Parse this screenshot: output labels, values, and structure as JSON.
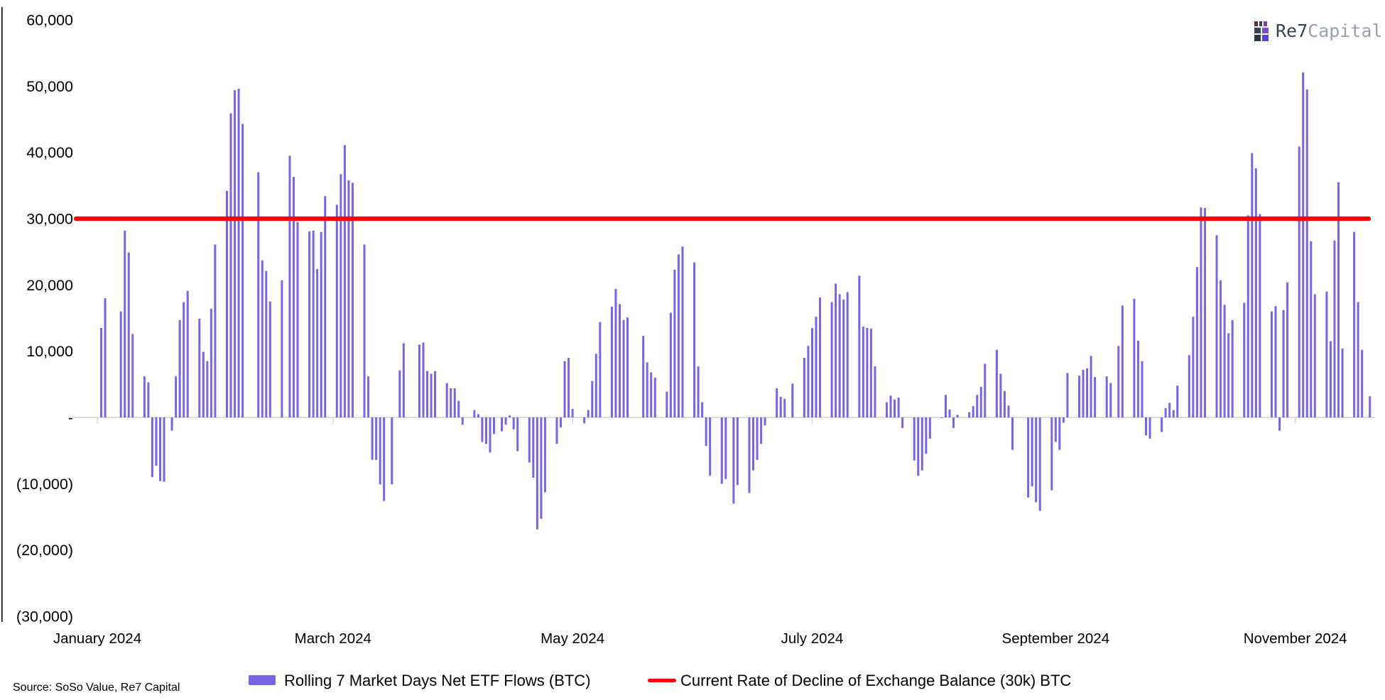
{
  "header": {
    "logo": {
      "icon": "rook-castle-icon",
      "text_primary": "Re7",
      "text_secondary": "Capital"
    }
  },
  "footer": {
    "source": "Source: SoSo Value, Re7 Capital"
  },
  "legend": {
    "series_label": "Rolling 7 Market Days Net ETF Flows (BTC)",
    "refline_label": "Current Rate of Decline of Exchange Balance (30k) BTC"
  },
  "chart_data": {
    "type": "bar",
    "title": "",
    "units": "BTC",
    "bar_color": "#7765e3",
    "grid": false,
    "legend_position": "bottom",
    "y_axis": {
      "min": -30000,
      "max": 60000,
      "tick_step": 10000,
      "ticks": [
        {
          "value": 60000,
          "label": "60,000"
        },
        {
          "value": 50000,
          "label": "50,000"
        },
        {
          "value": 40000,
          "label": "40,000"
        },
        {
          "value": 30000,
          "label": "30,000"
        },
        {
          "value": 20000,
          "label": "20,000"
        },
        {
          "value": 10000,
          "label": "10,000"
        },
        {
          "value": 0,
          "label": "-"
        },
        {
          "value": -10000,
          "label": "(10,000)"
        },
        {
          "value": -20000,
          "label": "(20,000)"
        },
        {
          "value": -30000,
          "label": "(30,000)"
        }
      ]
    },
    "x_axis": {
      "unit": "day_offset_from_2024-01-01",
      "ticks": [
        {
          "day": 0,
          "label": "January 2024"
        },
        {
          "day": 60,
          "label": "March 2024"
        },
        {
          "day": 121,
          "label": "May 2024"
        },
        {
          "day": 182,
          "label": "July 2024"
        },
        {
          "day": 244,
          "label": "September 2024"
        },
        {
          "day": 305,
          "label": "November 2024"
        }
      ]
    },
    "ref_line": {
      "value": 30000,
      "color": "#fe0000",
      "label": "Current Rate of Decline of Exchange Balance (30k) BTC"
    },
    "series": [
      {
        "name": "Rolling 7 Market Days Net ETF Flows (BTC)",
        "points": [
          [
            1,
            13500
          ],
          [
            2,
            18000
          ],
          [
            6,
            16000
          ],
          [
            7,
            28200
          ],
          [
            8,
            24900
          ],
          [
            9,
            12600
          ],
          [
            12,
            6200
          ],
          [
            13,
            5300
          ],
          [
            14,
            -9000
          ],
          [
            15,
            -7300
          ],
          [
            16,
            -9600
          ],
          [
            17,
            -9700
          ],
          [
            19,
            -2000
          ],
          [
            20,
            6200
          ],
          [
            21,
            14700
          ],
          [
            22,
            17400
          ],
          [
            23,
            19100
          ],
          [
            26,
            14900
          ],
          [
            27,
            9900
          ],
          [
            28,
            8500
          ],
          [
            29,
            16400
          ],
          [
            30,
            26100
          ],
          [
            33,
            34200
          ],
          [
            34,
            45900
          ],
          [
            35,
            49400
          ],
          [
            36,
            49600
          ],
          [
            37,
            44300
          ],
          [
            41,
            37000
          ],
          [
            42,
            23700
          ],
          [
            43,
            22100
          ],
          [
            44,
            17500
          ],
          [
            47,
            20700
          ],
          [
            49,
            39500
          ],
          [
            50,
            36300
          ],
          [
            51,
            29500
          ],
          [
            54,
            28100
          ],
          [
            55,
            28200
          ],
          [
            56,
            22400
          ],
          [
            57,
            28000
          ],
          [
            58,
            33400
          ],
          [
            61,
            32100
          ],
          [
            62,
            36700
          ],
          [
            63,
            41100
          ],
          [
            64,
            35800
          ],
          [
            65,
            35400
          ],
          [
            68,
            26100
          ],
          [
            69,
            6200
          ],
          [
            70,
            -6400
          ],
          [
            71,
            -6400
          ],
          [
            72,
            -10100
          ],
          [
            73,
            -12600
          ],
          [
            75,
            -10100
          ],
          [
            77,
            7100
          ],
          [
            78,
            11200
          ],
          [
            82,
            11000
          ],
          [
            83,
            11300
          ],
          [
            84,
            7000
          ],
          [
            85,
            6600
          ],
          [
            86,
            7000
          ],
          [
            89,
            5200
          ],
          [
            90,
            4400
          ],
          [
            91,
            4400
          ],
          [
            92,
            2500
          ],
          [
            93,
            -1100
          ],
          [
            96,
            1100
          ],
          [
            97,
            500
          ],
          [
            98,
            -3700
          ],
          [
            99,
            -4000
          ],
          [
            100,
            -5300
          ],
          [
            101,
            -2500
          ],
          [
            103,
            -2100
          ],
          [
            104,
            -1100
          ],
          [
            105,
            300
          ],
          [
            106,
            -1800
          ],
          [
            107,
            -5100
          ],
          [
            110,
            -6800
          ],
          [
            111,
            -9100
          ],
          [
            112,
            -16900
          ],
          [
            113,
            -15300
          ],
          [
            114,
            -11300
          ],
          [
            117,
            -4000
          ],
          [
            118,
            -1500
          ],
          [
            119,
            8500
          ],
          [
            120,
            9000
          ],
          [
            121,
            1300
          ],
          [
            124,
            -900
          ],
          [
            125,
            1100
          ],
          [
            126,
            5500
          ],
          [
            127,
            9600
          ],
          [
            128,
            14400
          ],
          [
            131,
            16700
          ],
          [
            132,
            19400
          ],
          [
            133,
            17100
          ],
          [
            134,
            14700
          ],
          [
            135,
            15100
          ],
          [
            139,
            12300
          ],
          [
            140,
            8300
          ],
          [
            141,
            6800
          ],
          [
            142,
            6000
          ],
          [
            145,
            3900
          ],
          [
            146,
            15800
          ],
          [
            147,
            22300
          ],
          [
            148,
            24600
          ],
          [
            149,
            25800
          ],
          [
            152,
            23400
          ],
          [
            153,
            7700
          ],
          [
            154,
            2300
          ],
          [
            155,
            -4300
          ],
          [
            156,
            -8800
          ],
          [
            159,
            -10000
          ],
          [
            160,
            -9300
          ],
          [
            162,
            -13000
          ],
          [
            163,
            -10200
          ],
          [
            166,
            -11400
          ],
          [
            167,
            -8000
          ],
          [
            168,
            -6400
          ],
          [
            169,
            -4000
          ],
          [
            170,
            -1200
          ],
          [
            173,
            4400
          ],
          [
            174,
            3100
          ],
          [
            175,
            2800
          ],
          [
            177,
            5100
          ],
          [
            180,
            9000
          ],
          [
            181,
            10800
          ],
          [
            182,
            13500
          ],
          [
            183,
            15200
          ],
          [
            184,
            18100
          ],
          [
            187,
            17400
          ],
          [
            188,
            20200
          ],
          [
            189,
            18600
          ],
          [
            190,
            17800
          ],
          [
            191,
            18900
          ],
          [
            194,
            21400
          ],
          [
            195,
            13700
          ],
          [
            196,
            13500
          ],
          [
            197,
            13400
          ],
          [
            198,
            7700
          ],
          [
            201,
            2300
          ],
          [
            202,
            3300
          ],
          [
            203,
            2700
          ],
          [
            204,
            3000
          ],
          [
            205,
            -1600
          ],
          [
            208,
            -6500
          ],
          [
            209,
            -8800
          ],
          [
            210,
            -8000
          ],
          [
            211,
            -5500
          ],
          [
            212,
            -3200
          ],
          [
            215,
            -100
          ],
          [
            216,
            3400
          ],
          [
            217,
            1200
          ],
          [
            218,
            -1600
          ],
          [
            219,
            400
          ],
          [
            222,
            800
          ],
          [
            223,
            1700
          ],
          [
            224,
            3400
          ],
          [
            225,
            4600
          ],
          [
            226,
            8100
          ],
          [
            229,
            10200
          ],
          [
            230,
            6600
          ],
          [
            231,
            4000
          ],
          [
            232,
            1800
          ],
          [
            233,
            -4900
          ],
          [
            237,
            -12100
          ],
          [
            238,
            -10400
          ],
          [
            239,
            -12800
          ],
          [
            240,
            -14100
          ],
          [
            243,
            -11000
          ],
          [
            244,
            -3700
          ],
          [
            245,
            -4900
          ],
          [
            246,
            -800
          ],
          [
            247,
            6700
          ],
          [
            250,
            6300
          ],
          [
            251,
            7200
          ],
          [
            252,
            7400
          ],
          [
            253,
            9300
          ],
          [
            254,
            6100
          ],
          [
            257,
            6200
          ],
          [
            258,
            5200
          ],
          [
            260,
            10800
          ],
          [
            261,
            16900
          ],
          [
            264,
            17900
          ],
          [
            265,
            11600
          ],
          [
            266,
            8500
          ],
          [
            267,
            -2700
          ],
          [
            268,
            -3200
          ],
          [
            271,
            -2200
          ],
          [
            272,
            1400
          ],
          [
            273,
            2200
          ],
          [
            274,
            1100
          ],
          [
            275,
            4800
          ],
          [
            278,
            9400
          ],
          [
            279,
            15200
          ],
          [
            280,
            22700
          ],
          [
            281,
            31700
          ],
          [
            282,
            31600
          ],
          [
            285,
            27500
          ],
          [
            286,
            20700
          ],
          [
            287,
            17000
          ],
          [
            288,
            12700
          ],
          [
            289,
            14700
          ],
          [
            292,
            17300
          ],
          [
            293,
            30500
          ],
          [
            294,
            39900
          ],
          [
            295,
            37600
          ],
          [
            296,
            30700
          ],
          [
            299,
            16000
          ],
          [
            300,
            16800
          ],
          [
            301,
            -2000
          ],
          [
            302,
            16200
          ],
          [
            303,
            20400
          ],
          [
            306,
            40900
          ],
          [
            307,
            52100
          ],
          [
            308,
            49500
          ],
          [
            309,
            26600
          ],
          [
            310,
            18600
          ],
          [
            313,
            19000
          ],
          [
            314,
            11500
          ],
          [
            315,
            26700
          ],
          [
            316,
            35500
          ],
          [
            317,
            10400
          ],
          [
            320,
            28000
          ],
          [
            321,
            17400
          ],
          [
            322,
            10200
          ],
          [
            324,
            3200
          ]
        ]
      }
    ]
  }
}
